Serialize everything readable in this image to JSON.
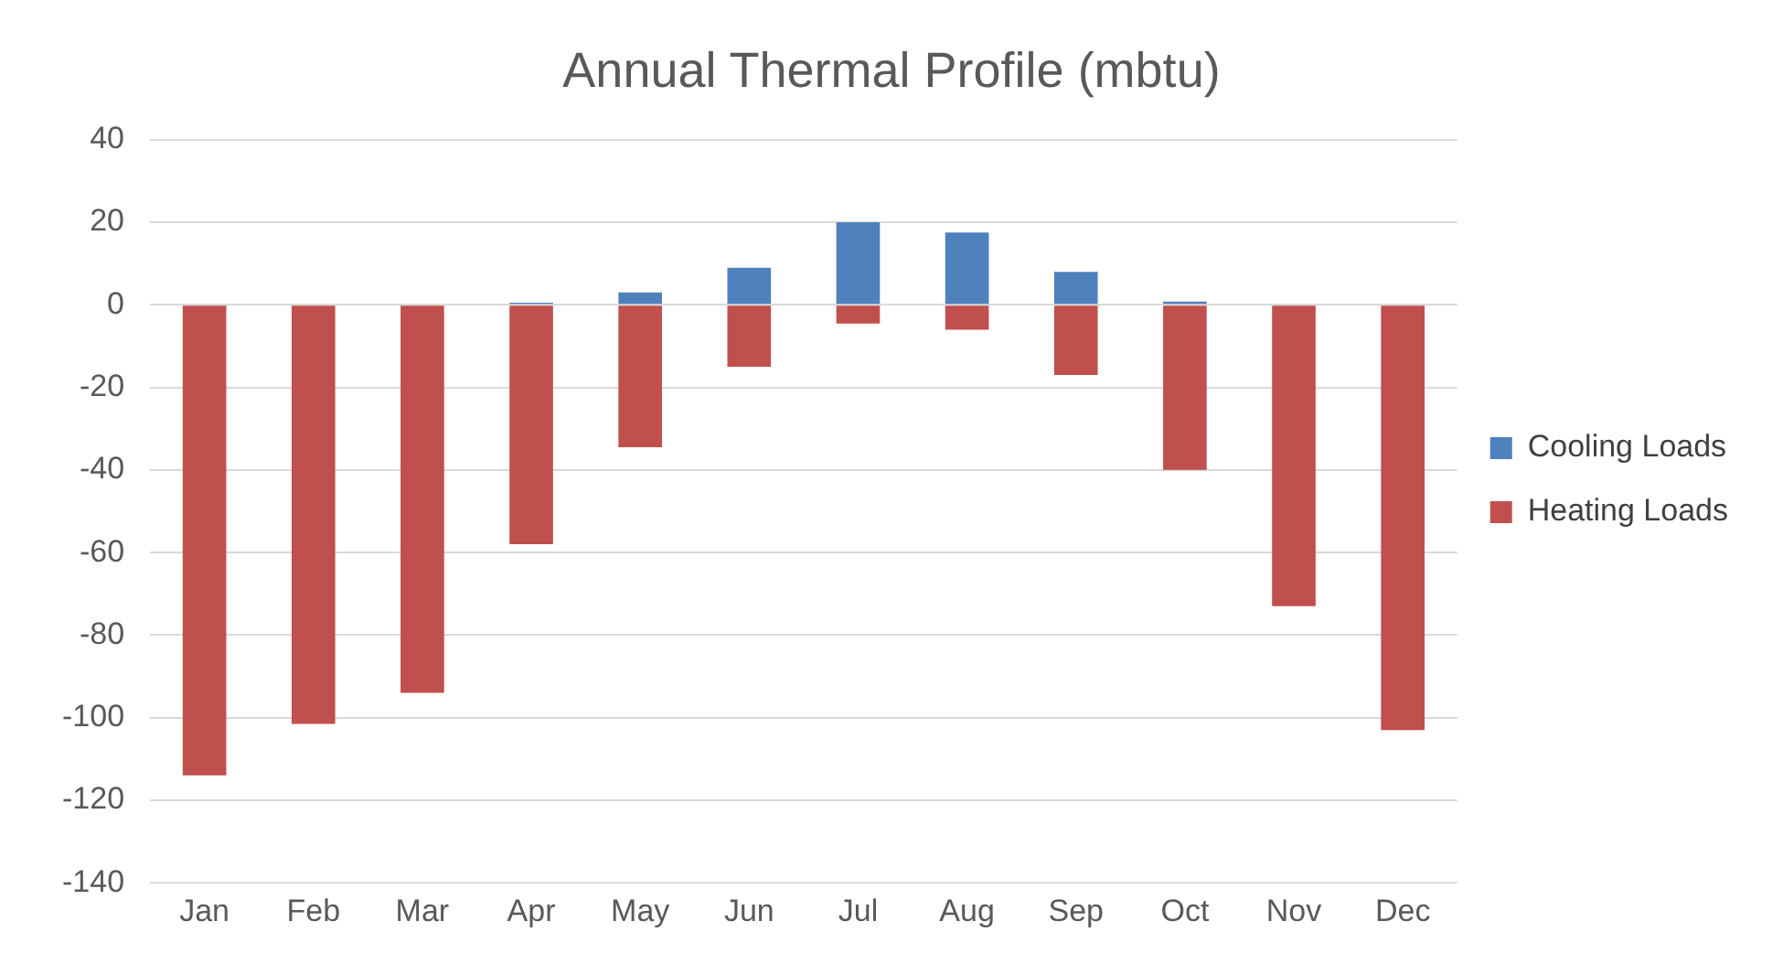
{
  "chart_data": {
    "type": "bar",
    "title": "Annual Thermal Profile (mbtu)",
    "categories": [
      "Jan",
      "Feb",
      "Mar",
      "Apr",
      "May",
      "Jun",
      "Jul",
      "Aug",
      "Sep",
      "Oct",
      "Nov",
      "Dec"
    ],
    "series": [
      {
        "name": "Cooling Loads",
        "color": "#4f81bd",
        "values": [
          0,
          0,
          0,
          0.5,
          3,
          9,
          20,
          17.5,
          8,
          0.8,
          0,
          0
        ]
      },
      {
        "name": "Heating Loads",
        "color": "#c0504d",
        "values": [
          -114,
          -101.5,
          -94,
          -58,
          -34.5,
          -15,
          -4.5,
          -6,
          -17,
          -40,
          -73,
          -103
        ]
      }
    ],
    "stacked": true,
    "ylim": [
      -140,
      40
    ],
    "yticks": [
      -140,
      -120,
      -100,
      -80,
      -60,
      -40,
      -20,
      0,
      20,
      40
    ],
    "grid": "y",
    "legend": "right"
  }
}
